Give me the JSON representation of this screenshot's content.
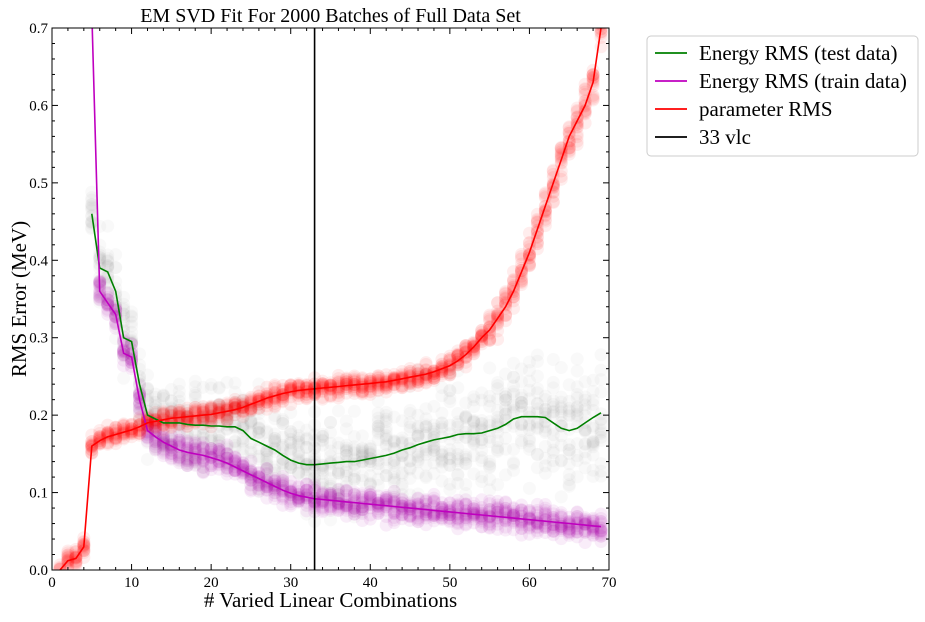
{
  "chart_data": {
    "type": "line",
    "title": "EM SVD Fit For 2000 Batches of Full Data Set",
    "xlabel": "# Varied Linear Combinations",
    "ylabel": "RMS Error (MeV)",
    "xlim": [
      0,
      70
    ],
    "ylim": [
      0,
      0.7
    ],
    "xticks": [
      0,
      10,
      20,
      30,
      40,
      50,
      60,
      70
    ],
    "yticks": [
      0.0,
      0.1,
      0.2,
      0.3,
      0.4,
      0.5,
      0.6,
      0.7
    ],
    "xtick_labels": [
      "0",
      "10",
      "20",
      "30",
      "40",
      "50",
      "60",
      "70"
    ],
    "ytick_labels": [
      "0.0",
      "0.1",
      "0.2",
      "0.3",
      "0.4",
      "0.5",
      "0.6",
      "0.7"
    ],
    "grid": false,
    "legend_position": "outside-right-top",
    "vline": {
      "x": 33,
      "name": "33 vlc",
      "color": "#000000"
    },
    "x": [
      1,
      2,
      3,
      4,
      5,
      6,
      7,
      8,
      9,
      10,
      11,
      12,
      13,
      14,
      15,
      16,
      17,
      18,
      19,
      20,
      21,
      22,
      23,
      24,
      25,
      26,
      27,
      28,
      29,
      30,
      31,
      32,
      33,
      34,
      35,
      36,
      37,
      38,
      39,
      40,
      41,
      42,
      43,
      44,
      45,
      46,
      47,
      48,
      49,
      50,
      51,
      52,
      53,
      54,
      55,
      56,
      57,
      58,
      59,
      60,
      61,
      62,
      63,
      64,
      65,
      66,
      67,
      68,
      69
    ],
    "series": [
      {
        "name": "Energy RMS (test data)",
        "color": "#008000",
        "scatter_color": "#555555",
        "values": [
          null,
          null,
          null,
          null,
          0.46,
          0.39,
          0.385,
          0.36,
          0.3,
          0.295,
          0.24,
          0.2,
          0.195,
          0.19,
          0.19,
          0.19,
          0.188,
          0.187,
          0.187,
          0.186,
          0.186,
          0.185,
          0.185,
          0.18,
          0.17,
          0.165,
          0.16,
          0.155,
          0.148,
          0.142,
          0.138,
          0.136,
          0.136,
          0.137,
          0.138,
          0.139,
          0.14,
          0.14,
          0.142,
          0.144,
          0.146,
          0.148,
          0.151,
          0.155,
          0.158,
          0.162,
          0.165,
          0.168,
          0.17,
          0.172,
          0.175,
          0.176,
          0.176,
          0.177,
          0.18,
          0.183,
          0.188,
          0.195,
          0.198,
          0.198,
          0.198,
          0.197,
          0.19,
          0.183,
          0.18,
          0.183,
          0.19,
          0.197,
          0.203
        ]
      },
      {
        "name": "Energy RMS (train data)",
        "color": "#bf00bf",
        "scatter_color": "#aa00aa",
        "values": [
          null,
          null,
          null,
          null,
          0.72,
          0.36,
          0.345,
          0.33,
          0.28,
          0.275,
          0.22,
          0.18,
          0.172,
          0.165,
          0.16,
          0.155,
          0.152,
          0.15,
          0.148,
          0.145,
          0.142,
          0.138,
          0.133,
          0.128,
          0.123,
          0.118,
          0.113,
          0.108,
          0.103,
          0.099,
          0.096,
          0.094,
          0.092,
          0.091,
          0.09,
          0.089,
          0.088,
          0.087,
          0.086,
          0.085,
          0.084,
          0.083,
          0.082,
          0.081,
          0.08,
          0.079,
          0.078,
          0.077,
          0.076,
          0.075,
          0.074,
          0.073,
          0.072,
          0.071,
          0.07,
          0.069,
          0.068,
          0.067,
          0.066,
          0.065,
          0.064,
          0.063,
          0.062,
          0.061,
          0.06,
          0.059,
          0.058,
          0.057,
          0.056
        ]
      },
      {
        "name": "parameter RMS",
        "color": "#ff0000",
        "scatter_color": "#ff0000",
        "values": [
          0.0,
          0.012,
          0.015,
          0.03,
          0.16,
          0.167,
          0.172,
          0.175,
          0.178,
          0.181,
          0.185,
          0.19,
          0.192,
          0.194,
          0.196,
          0.197,
          0.198,
          0.199,
          0.2,
          0.201,
          0.203,
          0.205,
          0.207,
          0.21,
          0.214,
          0.218,
          0.222,
          0.225,
          0.228,
          0.23,
          0.232,
          0.233,
          0.234,
          0.235,
          0.236,
          0.237,
          0.238,
          0.239,
          0.24,
          0.241,
          0.242,
          0.243,
          0.245,
          0.247,
          0.249,
          0.251,
          0.253,
          0.256,
          0.26,
          0.264,
          0.27,
          0.278,
          0.288,
          0.3,
          0.31,
          0.325,
          0.34,
          0.36,
          0.385,
          0.41,
          0.44,
          0.47,
          0.5,
          0.53,
          0.56,
          0.58,
          0.6,
          0.63,
          0.7
        ]
      }
    ]
  }
}
